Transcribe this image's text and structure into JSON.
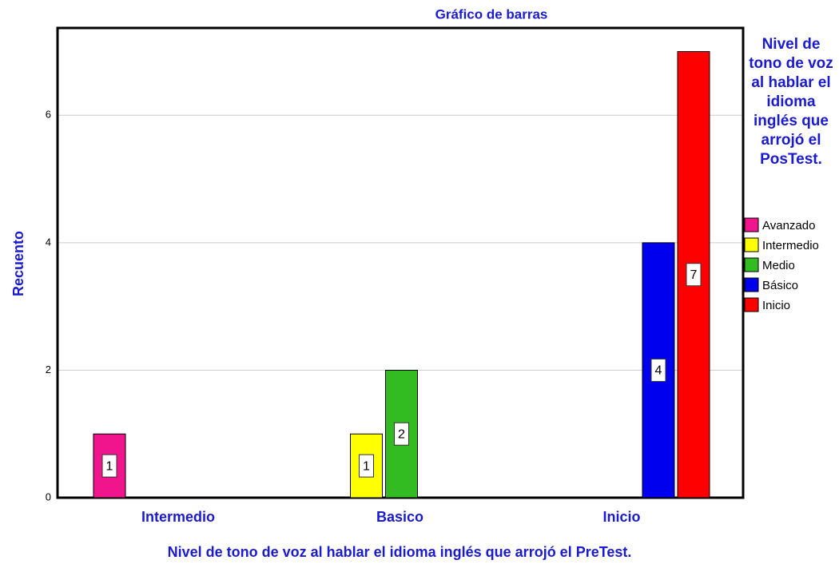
{
  "chart_data": {
    "type": "bar",
    "title": "Gráfico de barras",
    "x_label": "Nivel de tono de voz al hablar el idioma inglés que arrojó el  PreTest.",
    "y_label": "Recuento",
    "legend_title": "Nivel de tono de voz al hablar el idioma inglés que arrojó el PosTest.",
    "categories": [
      "Intermedio",
      "Basico",
      "Inicio"
    ],
    "series": [
      {
        "name": "Avanzado",
        "color": "#f0158c",
        "values": [
          1,
          null,
          null
        ]
      },
      {
        "name": "Intermedio",
        "color": "#ffff00",
        "values": [
          null,
          1,
          null
        ]
      },
      {
        "name": "Medio",
        "color": "#33bb22",
        "values": [
          null,
          2,
          null
        ]
      },
      {
        "name": "Básico",
        "color": "#0000ee",
        "values": [
          null,
          null,
          4
        ]
      },
      {
        "name": "Inicio",
        "color": "#ff0000",
        "values": [
          null,
          null,
          7
        ]
      }
    ],
    "ylim": [
      0,
      7.37
    ],
    "yticks": [
      0,
      2,
      4,
      6
    ],
    "grid": true,
    "legend": "right"
  }
}
